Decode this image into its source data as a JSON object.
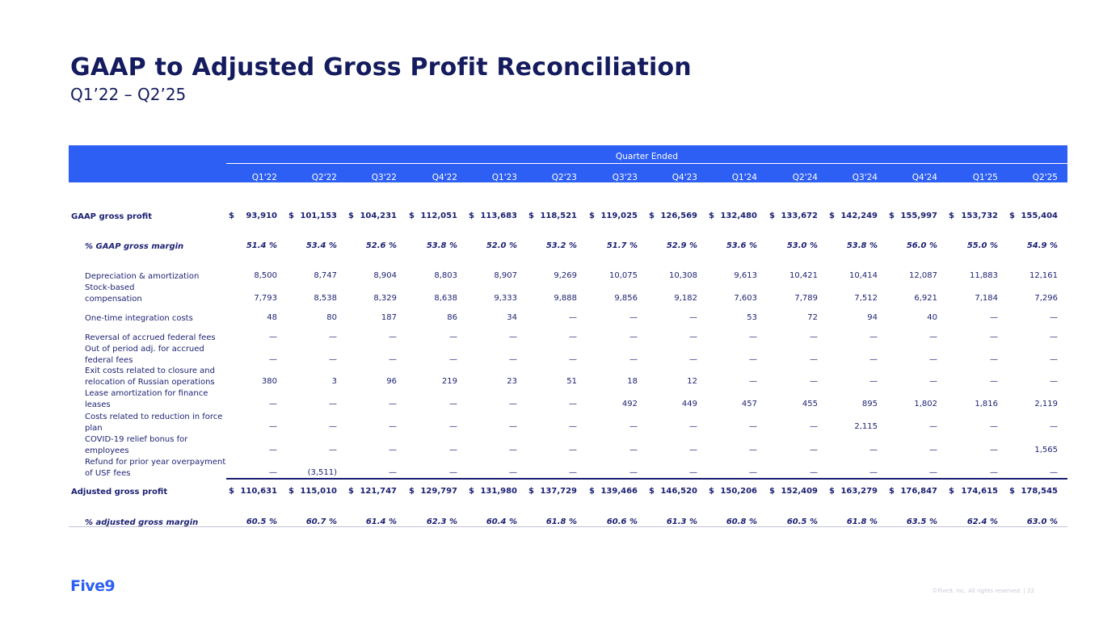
{
  "title": "GAAP to Adjusted Gross Profit Reconciliation",
  "subtitle": "Q1’22 – Q2’25",
  "header": {
    "band_title": "Quarter Ended",
    "quarters": [
      "Q1'22",
      "Q2'22",
      "Q3'22",
      "Q4'22",
      "Q1'23",
      "Q2'23",
      "Q3'23",
      "Q4'23",
      "Q1'24",
      "Q2'24",
      "Q3'24",
      "Q4'24",
      "Q1'25",
      "Q2'25"
    ]
  },
  "currency_symbol": "$",
  "rows": [
    {
      "label": "GAAP gross profit",
      "bold": true,
      "italic": false,
      "indent": false,
      "dollar": true,
      "values": [
        "93,910",
        "101,153",
        "104,231",
        "112,051",
        "113,683",
        "118,521",
        "119,025",
        "126,569",
        "132,480",
        "133,672",
        "142,249",
        "155,997",
        "153,732",
        "155,404"
      ]
    },
    {
      "label": "% GAAP gross margin",
      "bold": true,
      "italic": true,
      "indent": true,
      "dollar": false,
      "values": [
        "51.4 %",
        "53.4 %",
        "52.6 %",
        "53.8 %",
        "52.0 %",
        "53.2 %",
        "51.7 %",
        "52.9 %",
        "53.6 %",
        "53.0 %",
        "53.8 %",
        "56.0 %",
        "55.0 %",
        "54.9 %"
      ]
    },
    {
      "label": "Depreciation & amortization",
      "bold": false,
      "italic": false,
      "indent": true,
      "dollar": false,
      "values": [
        "8,500",
        "8,747",
        "8,904",
        "8,803",
        "8,907",
        "9,269",
        "10,075",
        "10,308",
        "9,613",
        "10,421",
        "10,414",
        "12,087",
        "11,883",
        "12,161"
      ]
    },
    {
      "label": "Stock-based compensation",
      "label_lines": [
        "Stock-based",
        "compensation"
      ],
      "bold": false,
      "italic": false,
      "indent": true,
      "dollar": false,
      "values": [
        "7,793",
        "8,538",
        "8,329",
        "8,638",
        "9,333",
        "9,888",
        "9,856",
        "9,182",
        "7,603",
        "7,789",
        "7,512",
        "6,921",
        "7,184",
        "7,296"
      ]
    },
    {
      "label": "One-time integration costs",
      "bold": false,
      "italic": false,
      "indent": true,
      "dollar": false,
      "values": [
        "48",
        "80",
        "187",
        "86",
        "34",
        "—",
        "—",
        "—",
        "53",
        "72",
        "94",
        "40",
        "—",
        "—"
      ]
    },
    {
      "label": "Reversal of accrued federal fees",
      "bold": false,
      "italic": false,
      "indent": true,
      "dollar": false,
      "values": [
        "—",
        "—",
        "—",
        "—",
        "—",
        "—",
        "—",
        "—",
        "—",
        "—",
        "—",
        "—",
        "—",
        "—"
      ]
    },
    {
      "label": "Out of period adj. for accrued federal fees",
      "label_lines": [
        "Out of period adj. for accrued",
        "federal fees"
      ],
      "bold": false,
      "italic": false,
      "indent": true,
      "dollar": false,
      "values": [
        "—",
        "—",
        "—",
        "—",
        "—",
        "—",
        "—",
        "—",
        "—",
        "—",
        "—",
        "—",
        "—",
        "—"
      ]
    },
    {
      "label": "Exit costs related to closure and relocation of Russian operations",
      "label_lines": [
        "Exit costs related to closure and",
        "relocation of Russian operations"
      ],
      "bold": false,
      "italic": false,
      "indent": true,
      "dollar": false,
      "values": [
        "380",
        "3",
        "96",
        "219",
        "23",
        "51",
        "18",
        "12",
        "—",
        "—",
        "—",
        "—",
        "—",
        "—"
      ]
    },
    {
      "label": "Lease amortization for finance leases",
      "label_lines": [
        "Lease amortization for finance",
        "leases"
      ],
      "bold": false,
      "italic": false,
      "indent": true,
      "dollar": false,
      "values": [
        "—",
        "—",
        "—",
        "—",
        "—",
        "—",
        "492",
        "449",
        "457",
        "455",
        "895",
        "1,802",
        "1,816",
        "2,119"
      ]
    },
    {
      "label": "Costs related to reduction in force plan",
      "label_lines": [
        "Costs related to reduction in force",
        "plan"
      ],
      "bold": false,
      "italic": false,
      "indent": true,
      "dollar": false,
      "values": [
        "—",
        "—",
        "—",
        "—",
        "—",
        "—",
        "—",
        "—",
        "—",
        "—",
        "2,115",
        "—",
        "—",
        "—"
      ]
    },
    {
      "label": "COVID-19 relief bonus for employees",
      "label_lines": [
        "COVID-19 relief bonus for",
        "employees"
      ],
      "bold": false,
      "italic": false,
      "indent": true,
      "dollar": false,
      "values": [
        "—",
        "—",
        "—",
        "—",
        "—",
        "—",
        "—",
        "—",
        "—",
        "—",
        "—",
        "—",
        "—",
        "1,565"
      ]
    },
    {
      "label": "Refund for prior year overpayment of USF fees",
      "label_lines": [
        "Refund for prior year overpayment",
        "of USF fees"
      ],
      "bold": false,
      "italic": false,
      "indent": true,
      "dollar": false,
      "values": [
        "—",
        "(3,511)",
        "—",
        "—",
        "—",
        "—",
        "—",
        "—",
        "—",
        "—",
        "—",
        "—",
        "—",
        "—"
      ]
    },
    {
      "label": "Adjusted gross profit",
      "bold": true,
      "italic": false,
      "indent": false,
      "dollar": true,
      "values": [
        "110,631",
        "115,010",
        "121,747",
        "129,797",
        "131,980",
        "137,729",
        "139,466",
        "146,520",
        "150,206",
        "152,409",
        "163,279",
        "176,847",
        "174,615",
        "178,545"
      ]
    },
    {
      "label": "% adjusted gross margin",
      "bold": true,
      "italic": true,
      "indent": true,
      "dollar": false,
      "values": [
        "60.5 %",
        "60.7 %",
        "61.4 %",
        "62.3 %",
        "60.4 %",
        "61.8 %",
        "60.6 %",
        "61.3 %",
        "60.8 %",
        "60.5 %",
        "61.8 %",
        "63.5 %",
        "62.4 %",
        "63.0 %"
      ]
    }
  ],
  "logo_text": "Five9",
  "footer": "©Five9, Inc. All rights reserved. | 22",
  "colors": {
    "brand_blue": "#2d5ff5",
    "navy": "#141b5e"
  }
}
